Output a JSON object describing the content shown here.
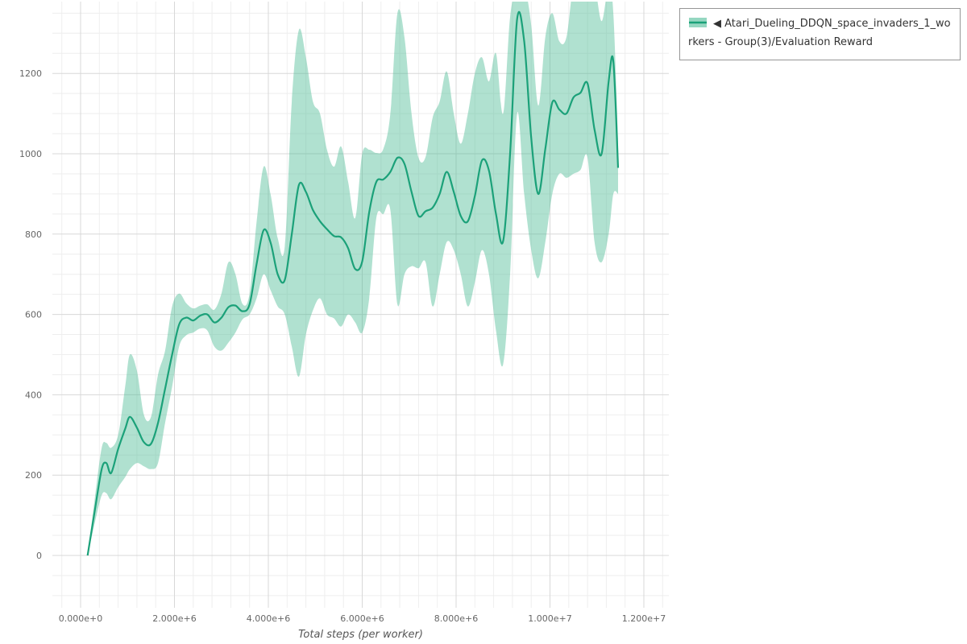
{
  "legend": {
    "label": "◀ Atari_Dueling_DDQN_space_invaders_1_workers - Group(3)/Evaluation Reward"
  },
  "chart_data": {
    "type": "line",
    "title": "",
    "xlabel": "Total steps (per worker)",
    "ylabel": "",
    "legend_position": "top-right-outside",
    "grid": {
      "major": true,
      "minor": true
    },
    "x_unit_note": "x values are millions of steps",
    "x_range_millions": [
      -0.6,
      12.53
    ],
    "y_range": [
      -130,
      1380
    ],
    "x_ticks": [
      {
        "v": 0,
        "label": "0.000e+0"
      },
      {
        "v": 2,
        "label": "2.000e+6"
      },
      {
        "v": 4,
        "label": "4.000e+6"
      },
      {
        "v": 6,
        "label": "6.000e+6"
      },
      {
        "v": 8,
        "label": "8.000e+6"
      },
      {
        "v": 10,
        "label": "1.000e+7"
      },
      {
        "v": 12,
        "label": "1.200e+7"
      }
    ],
    "y_ticks": [
      {
        "v": 0,
        "label": "0"
      },
      {
        "v": 200,
        "label": "200"
      },
      {
        "v": 400,
        "label": "400"
      },
      {
        "v": 600,
        "label": "600"
      },
      {
        "v": 800,
        "label": "800"
      },
      {
        "v": 1000,
        "label": "1000"
      },
      {
        "v": 1200,
        "label": "1200"
      }
    ],
    "series": [
      {
        "name": "Atari_Dueling_DDQN_space_invaders_1_workers - Group(3)/Evaluation Reward",
        "x_millions": [
          0.15,
          0.3,
          0.45,
          0.55,
          0.65,
          0.8,
          0.95,
          1.05,
          1.2,
          1.35,
          1.5,
          1.65,
          1.8,
          1.95,
          2.1,
          2.25,
          2.4,
          2.55,
          2.7,
          2.85,
          3.0,
          3.15,
          3.3,
          3.45,
          3.6,
          3.75,
          3.9,
          4.05,
          4.2,
          4.35,
          4.5,
          4.65,
          4.8,
          4.95,
          5.1,
          5.25,
          5.4,
          5.55,
          5.7,
          5.85,
          6.0,
          6.15,
          6.3,
          6.45,
          6.6,
          6.75,
          6.9,
          7.05,
          7.2,
          7.35,
          7.5,
          7.65,
          7.8,
          7.95,
          8.1,
          8.25,
          8.4,
          8.55,
          8.7,
          8.85,
          9.0,
          9.15,
          9.3,
          9.45,
          9.6,
          9.75,
          9.9,
          10.05,
          10.2,
          10.35,
          10.5,
          10.65,
          10.8,
          10.95,
          11.1,
          11.25,
          11.35,
          11.45
        ],
        "mean": [
          0,
          110,
          215,
          230,
          205,
          265,
          315,
          345,
          318,
          282,
          278,
          330,
          415,
          500,
          575,
          592,
          585,
          597,
          600,
          580,
          592,
          618,
          622,
          608,
          625,
          725,
          810,
          778,
          700,
          686,
          800,
          922,
          905,
          860,
          832,
          812,
          795,
          792,
          765,
          713,
          732,
          855,
          930,
          936,
          955,
          990,
          975,
          905,
          845,
          857,
          866,
          900,
          955,
          905,
          845,
          832,
          895,
          983,
          958,
          850,
          782,
          1000,
          1335,
          1280,
          1040,
          900,
          1012,
          1128,
          1110,
          1100,
          1140,
          1152,
          1175,
          1060,
          1000,
          1180,
          1230,
          965
        ],
        "band_low": [
          0,
          80,
          150,
          155,
          140,
          170,
          195,
          215,
          230,
          222,
          215,
          230,
          330,
          420,
          520,
          548,
          555,
          565,
          560,
          520,
          510,
          530,
          555,
          588,
          600,
          640,
          700,
          660,
          620,
          600,
          520,
          445,
          550,
          610,
          640,
          600,
          590,
          570,
          600,
          580,
          555,
          640,
          840,
          850,
          860,
          625,
          700,
          720,
          715,
          730,
          620,
          700,
          780,
          760,
          700,
          620,
          680,
          760,
          700,
          560,
          475,
          700,
          1100,
          900,
          760,
          690,
          780,
          900,
          950,
          940,
          950,
          960,
          990,
          780,
          730,
          800,
          900,
          900
        ],
        "band_high": [
          0,
          140,
          268,
          280,
          268,
          300,
          420,
          500,
          460,
          350,
          345,
          450,
          510,
          620,
          652,
          628,
          615,
          622,
          625,
          612,
          652,
          730,
          700,
          626,
          652,
          830,
          968,
          898,
          790,
          770,
          1130,
          1308,
          1240,
          1130,
          1100,
          1010,
          968,
          1018,
          930,
          840,
          1000,
          1010,
          1002,
          1012,
          1100,
          1350,
          1290,
          1100,
          990,
          992,
          1090,
          1130,
          1205,
          1100,
          1025,
          1100,
          1200,
          1240,
          1180,
          1250,
          1100,
          1340,
          1420,
          1420,
          1320,
          1120,
          1290,
          1350,
          1280,
          1290,
          1420,
          1420,
          1420,
          1420,
          1330,
          1420,
          1350,
          1030
        ]
      }
    ],
    "colors": {
      "line": "#1ba179",
      "band": "#4fbd97",
      "band_opacity": 0.45,
      "grid_major": "#d8d8d8",
      "grid_minor": "#eeeeee",
      "tick_text": "#666666",
      "axis_label": "#555555"
    }
  }
}
